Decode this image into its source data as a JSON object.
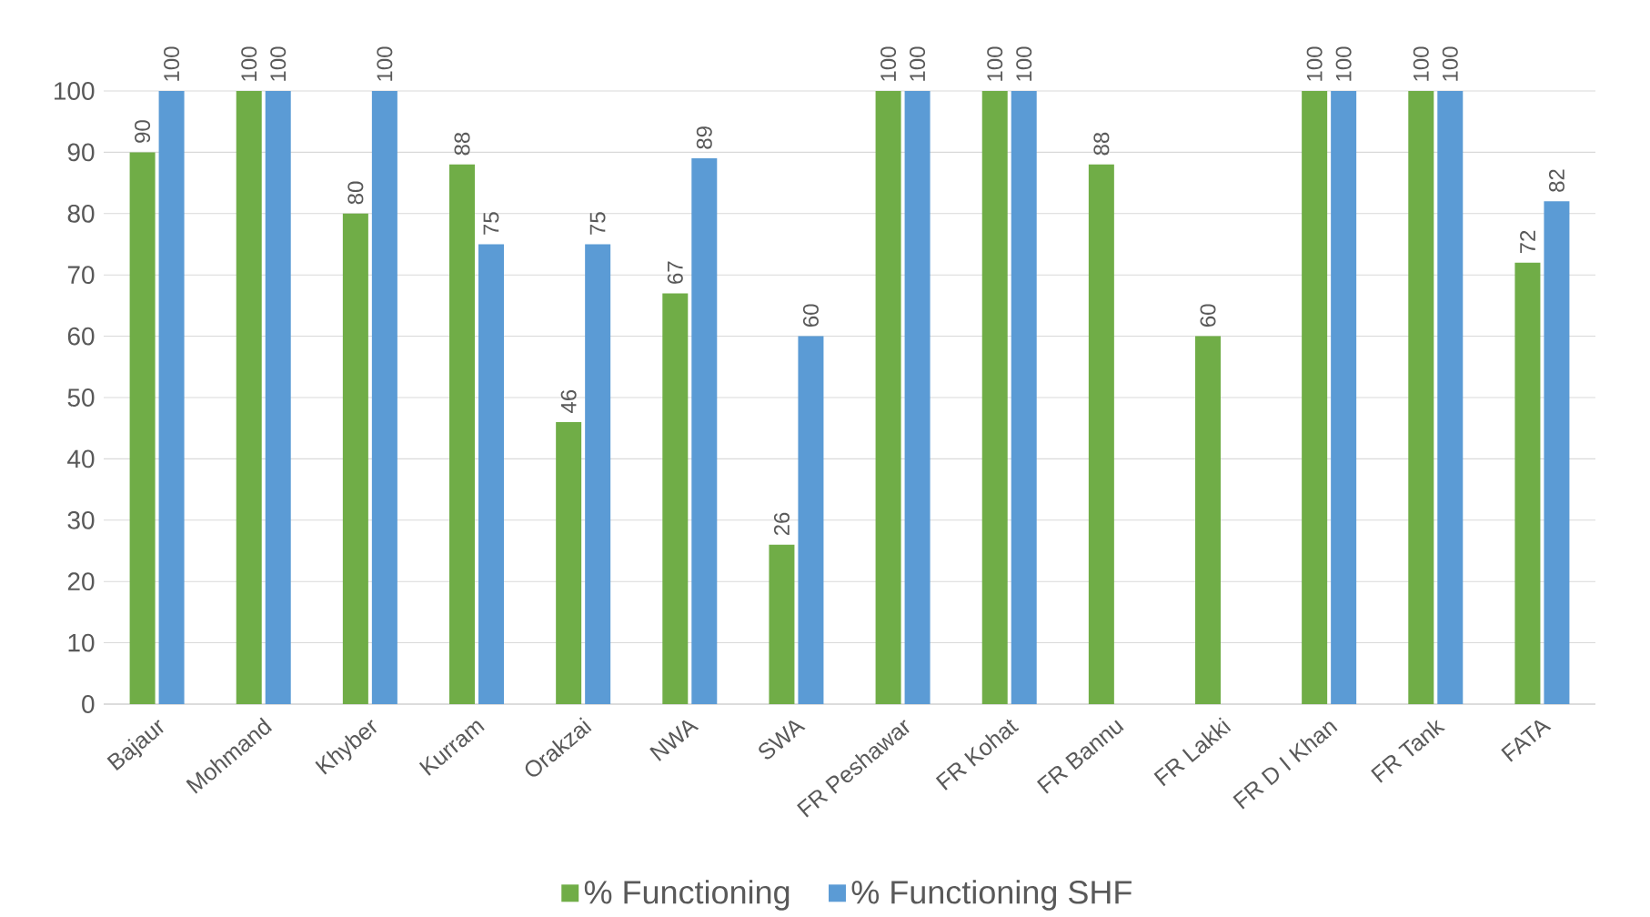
{
  "chart_data": {
    "type": "bar",
    "categories": [
      "Bajaur",
      "Mohmand",
      "Khyber",
      "Kurram",
      "Orakzai",
      "NWA",
      "SWA",
      "FR Peshawar",
      "FR Kohat",
      "FR Bannu",
      "FR Lakki",
      "FR D I Khan",
      "FR Tank",
      "FATA"
    ],
    "series": [
      {
        "name": "% Functioning",
        "color": "#70ad47",
        "values": [
          90,
          100,
          80,
          88,
          46,
          67,
          26,
          100,
          100,
          88,
          60,
          100,
          100,
          72
        ]
      },
      {
        "name": "% Functioning SHF",
        "color": "#5b9bd5",
        "values": [
          100,
          100,
          100,
          75,
          75,
          89,
          60,
          100,
          100,
          null,
          null,
          100,
          100,
          82
        ]
      }
    ],
    "ylim": [
      0,
      100
    ],
    "yticks": [
      0,
      10,
      20,
      30,
      40,
      50,
      60,
      70,
      80,
      90,
      100
    ],
    "grid": "y",
    "legend": "bottom",
    "data_labels": true
  }
}
